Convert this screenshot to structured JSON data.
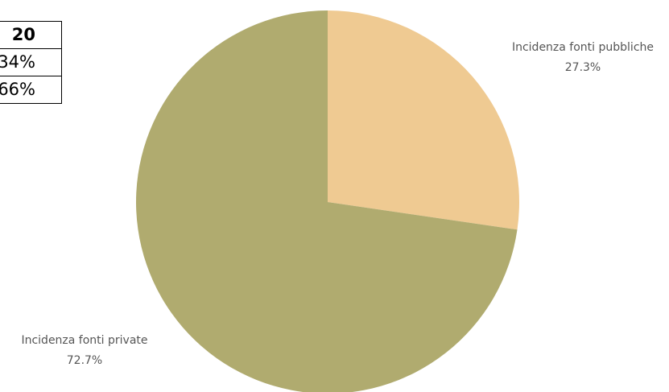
{
  "table": {
    "header": "20",
    "rows": [
      "34%",
      "66%"
    ]
  },
  "chart_data": {
    "type": "pie",
    "start_angle_deg": 0,
    "direction": "clockwise",
    "slices": [
      {
        "label": "Incidenza fonti pubbliche",
        "percent_label": "27.3%",
        "value": 27.3,
        "color": "#EFCA92"
      },
      {
        "label": "Incidenza fonti private",
        "percent_label": "72.7%",
        "value": 72.7,
        "color": "#B0AB6F"
      }
    ]
  }
}
